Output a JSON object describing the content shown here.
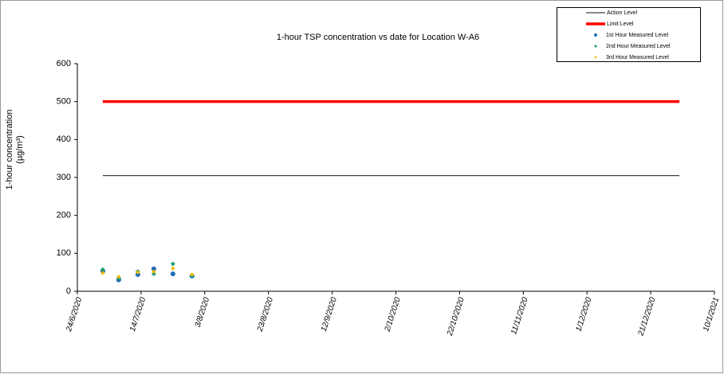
{
  "chart_data": {
    "type": "scatter",
    "title": "1-hour TSP concentration vs date for Location  W-A6",
    "y_label": [
      "1-hour concentration",
      "(µg/m³)"
    ],
    "xlim": [
      "24/6/2020",
      "10/1/2021"
    ],
    "xticks": [
      "24/6/2020",
      "14/7/2020",
      "3/8/2020",
      "23/8/2020",
      "12/9/2020",
      "2/10/2020",
      "22/10/2020",
      "11/11/2020",
      "1/12/2020",
      "21/12/2020",
      "10/1/2021"
    ],
    "ylim": [
      0,
      600
    ],
    "yticks": [
      0,
      100,
      200,
      300,
      400,
      500,
      600
    ],
    "grid": false,
    "legend": "top-right",
    "series": [
      {
        "name": "Action Level",
        "color": "#404040",
        "line": true,
        "line_width": 1.2,
        "x": [
          "2/7/2020",
          "30/12/2020"
        ],
        "values": [
          305,
          305
        ]
      },
      {
        "name": "Limit Level",
        "color": "#ff0000",
        "line": true,
        "line_width": 3.5,
        "x": [
          "2/7/2020",
          "30/12/2020"
        ],
        "values": [
          500,
          500
        ]
      },
      {
        "name": "1st Hour Measured Level",
        "color": "#1f6fb5",
        "marker": "circle",
        "x": [
          "2/7/2020",
          "7/7/2020",
          "13/7/2020",
          "18/7/2020",
          "24/7/2020",
          "30/7/2020"
        ],
        "values": [
          53,
          30,
          44,
          59,
          46,
          40
        ]
      },
      {
        "name": "2nd Hour Measured Level",
        "color": "#20a070",
        "marker": "diamond",
        "x": [
          "2/7/2020",
          "7/7/2020",
          "13/7/2020",
          "18/7/2020",
          "24/7/2020",
          "30/7/2020"
        ],
        "values": [
          57,
          35,
          52,
          46,
          72,
          42
        ]
      },
      {
        "name": "3rd Hour Measured Level",
        "color": "#f5b800",
        "marker": "dot",
        "x": [
          "2/7/2020",
          "7/7/2020",
          "13/7/2020",
          "18/7/2020",
          "24/7/2020",
          "30/7/2020"
        ],
        "values": [
          48,
          38,
          50,
          52,
          60,
          44
        ]
      }
    ]
  }
}
